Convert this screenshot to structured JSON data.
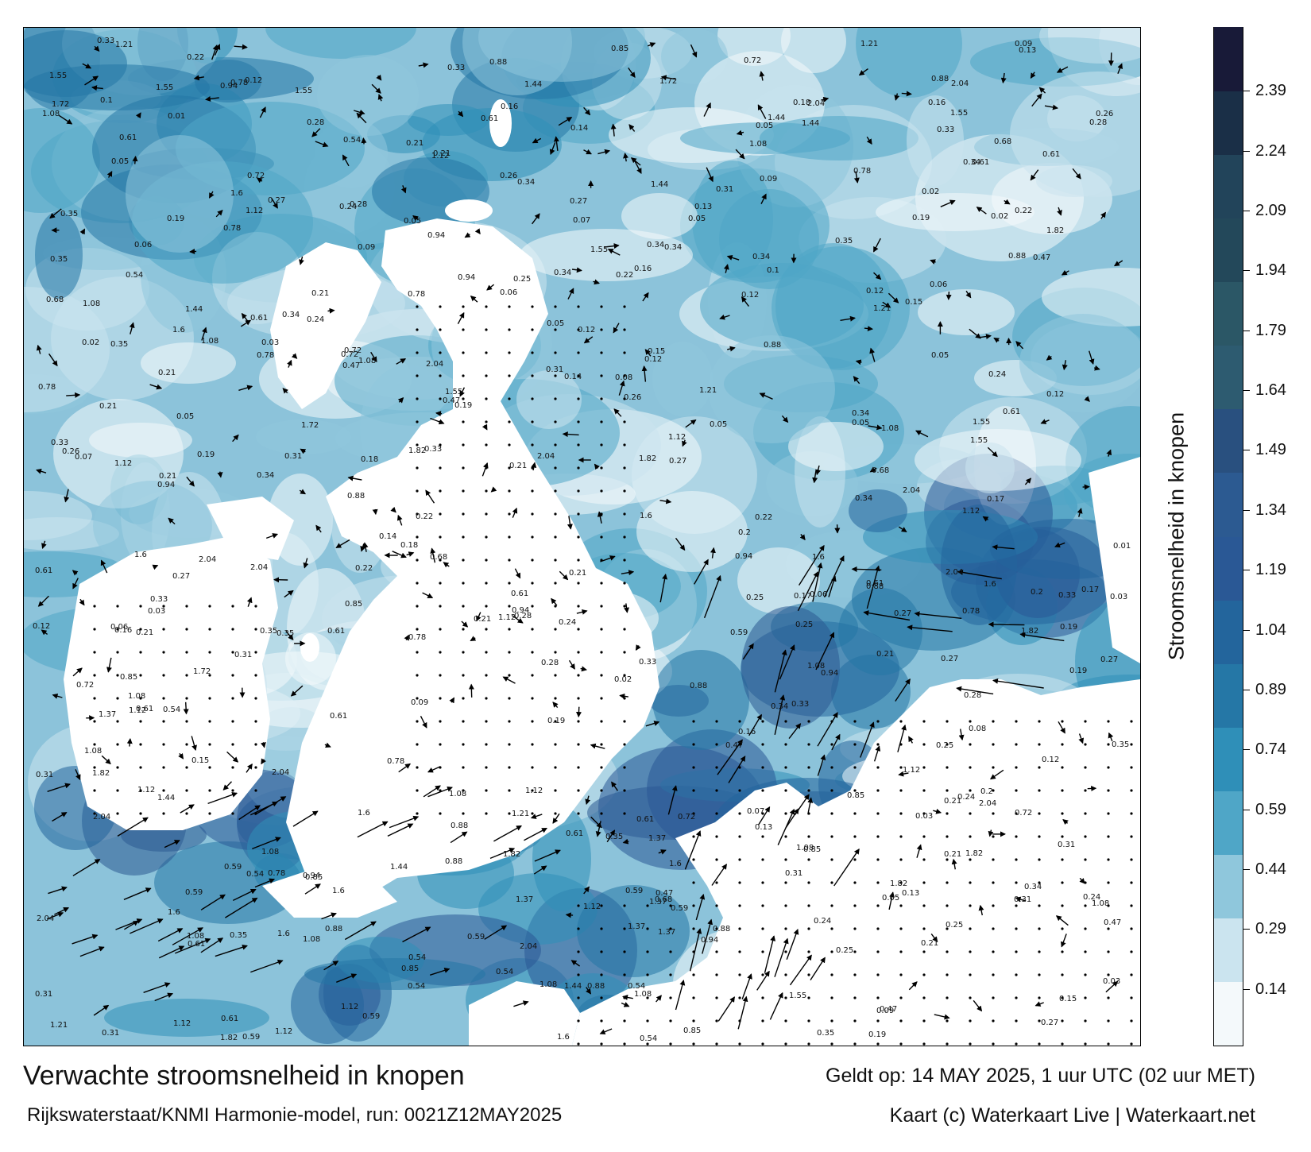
{
  "title": "Verwachte stroomsnelheid in knopen",
  "subtitle": "Rijkswaterstaat/KNMI Harmonie-model, run: 0021Z12MAY2025",
  "valid_time": "Geldt op: 14 MAY 2025, 1 uur UTC (02 uur MET)",
  "credit": "Kaart (c) Waterkaart Live | Waterkaart.net",
  "colorbar": {
    "label": "Stroomsnelheid in knopen",
    "ticks": [
      "0.14",
      "0.29",
      "0.44",
      "0.59",
      "0.74",
      "0.89",
      "1.04",
      "1.19",
      "1.34",
      "1.49",
      "1.64",
      "1.79",
      "1.94",
      "2.09",
      "2.24",
      "2.39"
    ],
    "tick_values": [
      0.14,
      0.29,
      0.44,
      0.59,
      0.74,
      0.89,
      1.04,
      1.19,
      1.34,
      1.49,
      1.64,
      1.79,
      1.94,
      2.09,
      2.24,
      2.39
    ],
    "range": [
      0,
      2.55
    ],
    "colors": [
      "#f4f9fb",
      "#cbe4ef",
      "#8fc7dc",
      "#4fa6c7",
      "#2f8fb8",
      "#2577a6",
      "#23659c",
      "#2a5895",
      "#2c5a91",
      "#29507f",
      "#2d5b70",
      "#2b5766",
      "#23485a",
      "#22445a",
      "#1a2f47",
      "#181a38"
    ]
  },
  "map": {
    "land_color": "#ffffff",
    "speed_samples": [
      {
        "v": "0.22"
      },
      {
        "v": "0.21"
      },
      {
        "v": "0.28"
      },
      {
        "v": "0.26"
      },
      {
        "v": "0.27"
      },
      {
        "v": "0.24"
      },
      {
        "v": "0.2"
      },
      {
        "v": "0.18"
      },
      {
        "v": "0.34"
      },
      {
        "v": "0.33"
      },
      {
        "v": "0.17"
      },
      {
        "v": "0.14"
      },
      {
        "v": "0.25"
      },
      {
        "v": "0.15"
      },
      {
        "v": "0.21"
      },
      {
        "v": "0.16"
      },
      {
        "v": "0.19"
      },
      {
        "v": "0.12"
      },
      {
        "v": "0.1"
      },
      {
        "v": "0.13"
      },
      {
        "v": "0.08"
      },
      {
        "v": "0.07"
      },
      {
        "v": "0.09"
      },
      {
        "v": "0.05"
      },
      {
        "v": "0.06"
      },
      {
        "v": "0.31"
      },
      {
        "v": "0.35"
      },
      {
        "v": "0.47"
      },
      {
        "v": "0.54"
      },
      {
        "v": "0.59"
      },
      {
        "v": "0.61"
      },
      {
        "v": "0.68"
      },
      {
        "v": "0.72"
      },
      {
        "v": "0.78"
      },
      {
        "v": "0.85"
      },
      {
        "v": "0.88"
      },
      {
        "v": "0.94"
      },
      {
        "v": "1.08"
      },
      {
        "v": "1.12"
      },
      {
        "v": "1.21"
      },
      {
        "v": "1.37"
      },
      {
        "v": "1.44"
      },
      {
        "v": "1.55"
      },
      {
        "v": "1.6"
      },
      {
        "v": "1.72"
      },
      {
        "v": "1.82"
      },
      {
        "v": "2.04"
      },
      {
        "v": "0.01"
      },
      {
        "v": "0.02"
      },
      {
        "v": "0.03"
      }
    ],
    "icons": {
      "arrow": "current-direction-arrow-icon",
      "dot": "calm-current-dot-icon"
    }
  }
}
